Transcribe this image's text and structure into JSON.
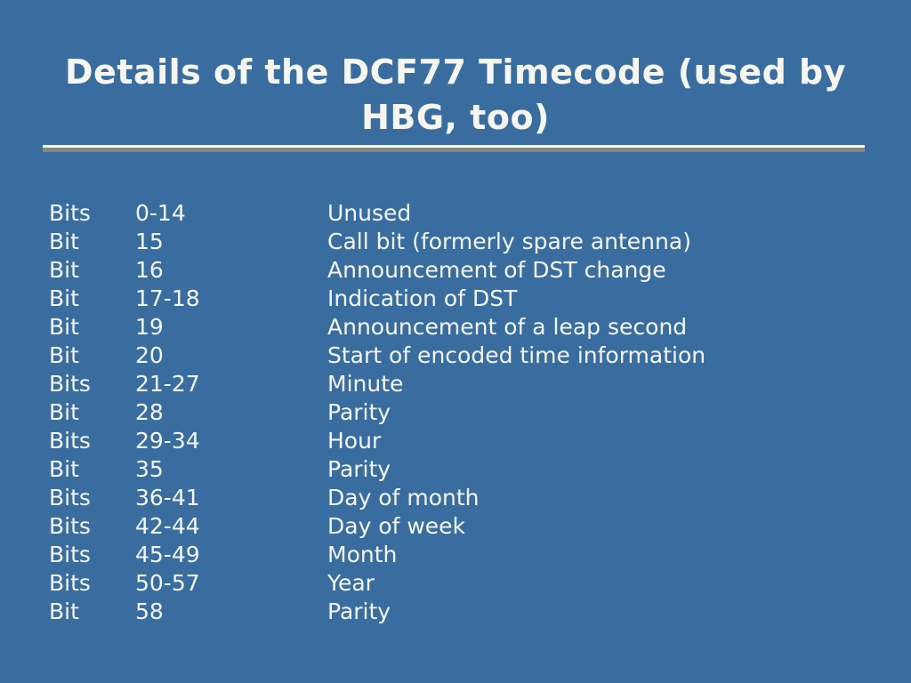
{
  "slide": {
    "title": "Details of the DCF77 Timecode (used by HBG, too)",
    "colors": {
      "background": "#3A6D9F",
      "title_text": "#F6F6EE",
      "body_text": "#F3F5EE",
      "rule_top": "#FDFBEE",
      "rule_bottom": "#85897C"
    },
    "table": {
      "rows": [
        {
          "label": "Bits",
          "bits": "0-14",
          "description": "Unused"
        },
        {
          "label": "Bit",
          "bits": "15",
          "description": "Call bit (formerly spare antenna)"
        },
        {
          "label": "Bit",
          "bits": "16",
          "description": "Announcement of DST change"
        },
        {
          "label": "Bit",
          "bits": "17-18",
          "description": "Indication of DST"
        },
        {
          "label": "Bit",
          "bits": "19",
          "description": "Announcement of a leap second"
        },
        {
          "label": "Bit",
          "bits": "20",
          "description": "Start of encoded time information"
        },
        {
          "label": "Bits",
          "bits": "21-27",
          "description": "Minute"
        },
        {
          "label": "Bit",
          "bits": "28",
          "description": "Parity"
        },
        {
          "label": "Bits",
          "bits": "29-34",
          "description": "Hour"
        },
        {
          "label": "Bit",
          "bits": "35",
          "description": "Parity"
        },
        {
          "label": "Bits",
          "bits": "36-41",
          "description": "Day of month"
        },
        {
          "label": "Bits",
          "bits": "42-44",
          "description": "Day of week"
        },
        {
          "label": "Bits",
          "bits": "45-49",
          "description": "Month"
        },
        {
          "label": "Bits",
          "bits": "50-57",
          "description": "Year"
        },
        {
          "label": "Bit",
          "bits": "58",
          "description": "Parity"
        }
      ]
    }
  }
}
